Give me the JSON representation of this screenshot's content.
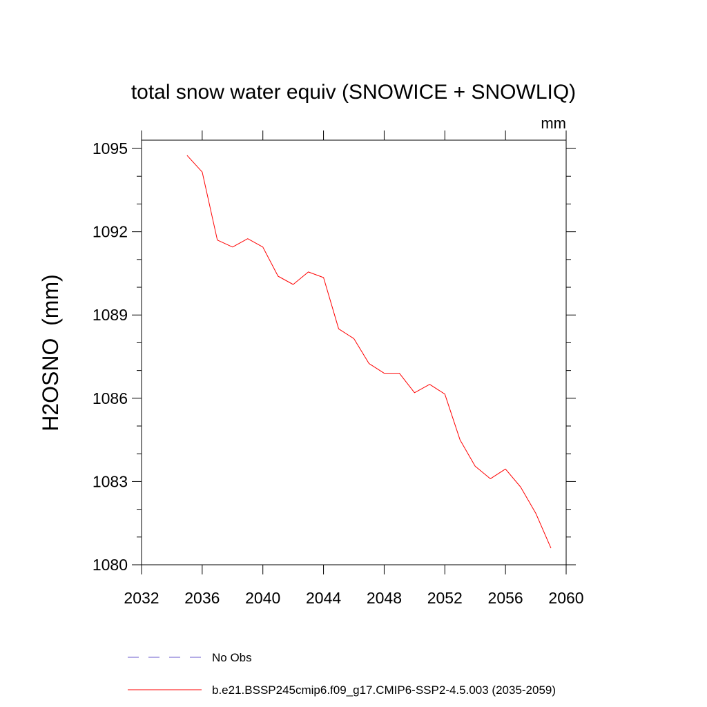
{
  "chart_data": {
    "type": "line",
    "title": "total snow water equiv (SNOWICE + SNOWLIQ)",
    "units": "mm",
    "ylabel": "H2OSNO  (mm)",
    "xlabel": "",
    "xlim": [
      2032,
      2060
    ],
    "ylim": [
      1080,
      1095.3
    ],
    "xticks": [
      2032,
      2036,
      2040,
      2044,
      2048,
      2052,
      2056,
      2060
    ],
    "yticks": [
      1080,
      1083,
      1086,
      1089,
      1092,
      1095
    ],
    "xtick_labels": [
      "2032",
      "2036",
      "2040",
      "2044",
      "2048",
      "2052",
      "2056",
      "2060"
    ],
    "ytick_labels": [
      "1080",
      "1083",
      "1086",
      "1089",
      "1092",
      "1095"
    ],
    "grid": false,
    "legend_position": "bottom",
    "series": [
      {
        "name": "b.e21.BSSP245cmip6.f09_g17.CMIP6-SSP2-4.5.003 (2035-2059)",
        "color": "#ff0000",
        "style": "solid",
        "x": [
          2035,
          2036,
          2037,
          2038,
          2039,
          2040,
          2041,
          2042,
          2043,
          2044,
          2045,
          2046,
          2047,
          2048,
          2049,
          2050,
          2051,
          2052,
          2053,
          2054,
          2055,
          2056,
          2057,
          2058,
          2059
        ],
        "y": [
          1094.75,
          1094.15,
          1091.7,
          1091.45,
          1091.75,
          1091.45,
          1090.4,
          1090.1,
          1090.55,
          1090.35,
          1088.5,
          1088.15,
          1087.25,
          1086.9,
          1086.9,
          1086.2,
          1086.5,
          1086.15,
          1084.5,
          1083.55,
          1083.1,
          1083.45,
          1082.8,
          1081.85,
          1080.6
        ]
      }
    ],
    "legend": [
      {
        "label": "No Obs",
        "color": "#6a5acd",
        "style": "dashed"
      },
      {
        "label": "b.e21.BSSP245cmip6.f09_g17.CMIP6-SSP2-4.5.003 (2035-2059)",
        "color": "#ff0000",
        "style": "solid"
      }
    ]
  }
}
